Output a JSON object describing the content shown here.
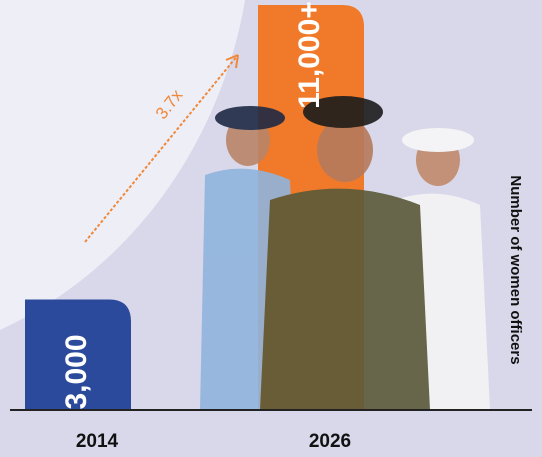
{
  "chart_data": {
    "type": "bar",
    "categories": [
      "2014",
      "2026"
    ],
    "values": [
      3000,
      11000
    ],
    "value_labels": [
      "3,000",
      "11,000+"
    ],
    "colors": [
      "#2c4a9b",
      "#f07a2a"
    ],
    "y_label": "Number of women officers",
    "annotation": "3.7x",
    "annotation_color": "#f0883a"
  }
}
